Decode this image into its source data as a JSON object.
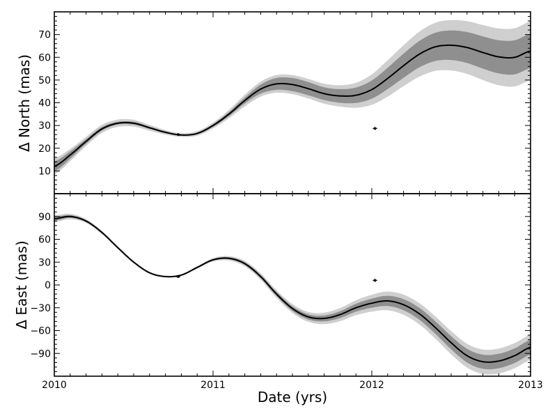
{
  "chart_data": {
    "type": "line",
    "xlabel": "Date (yrs)",
    "x_ticks": [
      2010,
      2011,
      2012,
      2013
    ],
    "xlim": [
      2010,
      2013
    ],
    "colors": {
      "curve": "#000000",
      "band_1sigma": "#8f8f8f",
      "band_2sigma": "#cfcfcf",
      "data_point": "#000000",
      "axes": "#000000"
    },
    "panels": [
      {
        "id": "north",
        "ylabel": "Δ North (mas)",
        "ylim": [
          0,
          80
        ],
        "y_ticks": [
          10,
          20,
          30,
          40,
          50,
          60,
          70
        ],
        "curve": {
          "x": [
            2010.0,
            2010.1,
            2010.2,
            2010.3,
            2010.4,
            2010.5,
            2010.6,
            2010.7,
            2010.8,
            2010.9,
            2011.0,
            2011.1,
            2011.2,
            2011.3,
            2011.4,
            2011.5,
            2011.6,
            2011.7,
            2011.8,
            2011.9,
            2012.0,
            2012.1,
            2012.2,
            2012.3,
            2012.4,
            2012.5,
            2012.6,
            2012.7,
            2012.8,
            2012.9,
            2013.0
          ],
          "y": [
            12,
            17,
            23,
            28.5,
            31,
            31,
            29,
            27,
            25.8,
            26.5,
            30,
            35,
            41,
            46,
            48.3,
            48,
            46.2,
            44,
            43,
            43.3,
            45.8,
            50.7,
            56.3,
            61.4,
            64.6,
            65.3,
            64.3,
            62.1,
            60.2,
            60,
            62.8
          ]
        },
        "band_1sigma_halfwidth": [
          2.2,
          1.6,
          1,
          0.8,
          0.6,
          0.6,
          0.5,
          0.4,
          0.3,
          0.4,
          0.6,
          0.9,
          1.3,
          2,
          2.6,
          2.9,
          2.9,
          2.8,
          3,
          3.4,
          4,
          4.7,
          5.3,
          5.8,
          6.2,
          6.5,
          6.8,
          7.1,
          7.3,
          7.5,
          7.6
        ],
        "band_2sigma_halfwidth": [
          3.6,
          2.7,
          2,
          1.8,
          1.6,
          1.5,
          1.3,
          1,
          0.8,
          1,
          1.3,
          1.8,
          2.6,
          3.3,
          3.9,
          4.2,
          4.3,
          4.4,
          4.7,
          5.5,
          6.7,
          8,
          9,
          9.9,
          10.6,
          11.1,
          11.6,
          12.1,
          12.5,
          12.8,
          13
        ],
        "points": [
          {
            "x": 2010.78,
            "y": 26,
            "xerr": 0.01,
            "yerr": 0.4
          },
          {
            "x": 2012.02,
            "y": 28.7,
            "xerr": 0.01,
            "yerr": 0.4
          }
        ]
      },
      {
        "id": "east",
        "ylabel": "Δ East (mas)",
        "ylim": [
          -120,
          120
        ],
        "y_ticks": [
          -90,
          -60,
          -30,
          0,
          30,
          60,
          90
        ],
        "y_tick_labels": [
          "−90",
          "−60",
          "−30",
          "0",
          "30",
          "60",
          "90"
        ],
        "curve": {
          "x": [
            2010.0,
            2010.1,
            2010.2,
            2010.3,
            2010.4,
            2010.5,
            2010.6,
            2010.7,
            2010.8,
            2010.9,
            2011.0,
            2011.1,
            2011.2,
            2011.3,
            2011.4,
            2011.5,
            2011.6,
            2011.7,
            2011.8,
            2011.9,
            2012.0,
            2012.1,
            2012.2,
            2012.3,
            2012.4,
            2012.5,
            2012.6,
            2012.7,
            2012.8,
            2012.9,
            2013.0
          ],
          "y": [
            87,
            90,
            84,
            69,
            49,
            30,
            16,
            11,
            13,
            23,
            33,
            35,
            28,
            11,
            -12,
            -31,
            -42,
            -44,
            -39,
            -30,
            -24,
            -21,
            -26,
            -38,
            -56,
            -76,
            -93,
            -101,
            -100,
            -93,
            -82
          ],
          "comment": "smooth fitted orbit"
        },
        "band_1sigma_halfwidth": [
          2.5,
          1.8,
          1.3,
          1,
          0.8,
          0.6,
          0.5,
          0.4,
          0.5,
          0.8,
          1.1,
          1.4,
          1.8,
          2.2,
          2.6,
          3,
          3.4,
          3.9,
          4.5,
          5.2,
          6,
          6.7,
          7.3,
          7.8,
          8.2,
          8.6,
          9,
          9.3,
          9.5,
          9.6,
          9.7
        ],
        "band_2sigma_halfwidth": [
          4.5,
          3.5,
          2.6,
          2.2,
          1.9,
          1.6,
          1.3,
          1.1,
          1.2,
          1.7,
          2.3,
          2.9,
          3.6,
          4.3,
          5,
          5.8,
          6.5,
          7.5,
          8.6,
          9.8,
          11.1,
          12.3,
          13.2,
          14,
          14.6,
          15.2,
          15.7,
          16.1,
          16.4,
          16.6,
          16.8
        ],
        "points": [
          {
            "x": 2010.78,
            "y": 11,
            "xerr": 0.01,
            "yerr": 1.5
          },
          {
            "x": 2012.02,
            "y": 6,
            "xerr": 0.01,
            "yerr": 1.5
          }
        ]
      }
    ]
  }
}
